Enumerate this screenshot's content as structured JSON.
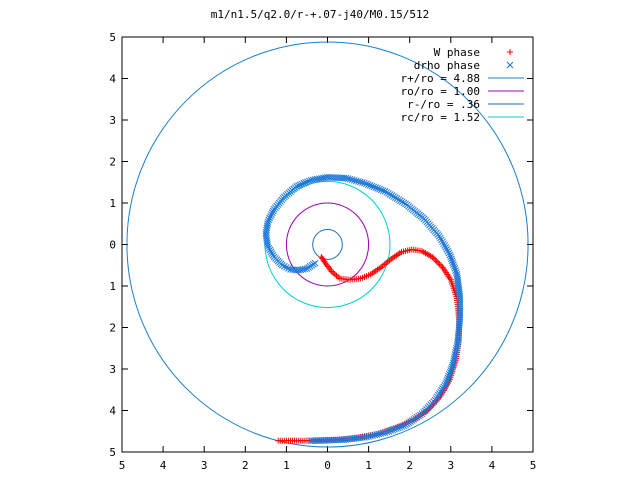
{
  "chart_data": {
    "type": "scatter",
    "title": "m1/n1.5/q2.0/r-+.07-j40/M0.15/512",
    "xlim": [
      -5,
      5
    ],
    "ylim": [
      -5,
      5
    ],
    "x_ticks": [
      -5,
      -4,
      -3,
      -2,
      -1,
      0,
      1,
      2,
      3,
      4,
      5
    ],
    "y_ticks": [
      -5,
      -4,
      -3,
      -2,
      -1,
      0,
      1,
      2,
      3,
      4,
      5
    ],
    "x_tick_labels": [
      "5",
      "4",
      "3",
      "2",
      "1",
      "0",
      "1",
      "2",
      "3",
      "4",
      "5"
    ],
    "y_tick_labels": [
      "5",
      "4",
      "3",
      "2",
      "1",
      "0",
      "1",
      "2",
      "3",
      "4",
      "5"
    ],
    "grid": false,
    "legend_position": "top-right",
    "series": [
      {
        "name": "W phase",
        "marker": "+",
        "color": "#ff0000",
        "points": [
          [
            -0.15,
            -0.3
          ],
          [
            -0.05,
            -0.45
          ],
          [
            0.1,
            -0.65
          ],
          [
            0.3,
            -0.82
          ],
          [
            0.55,
            -0.85
          ],
          [
            0.8,
            -0.82
          ],
          [
            1.05,
            -0.72
          ],
          [
            1.3,
            -0.55
          ],
          [
            1.55,
            -0.35
          ],
          [
            1.8,
            -0.18
          ],
          [
            2.05,
            -0.12
          ],
          [
            2.3,
            -0.16
          ],
          [
            2.55,
            -0.3
          ],
          [
            2.8,
            -0.55
          ],
          [
            3.0,
            -0.85
          ],
          [
            3.15,
            -1.3
          ],
          [
            3.2,
            -1.8
          ],
          [
            3.2,
            -2.3
          ],
          [
            3.12,
            -2.8
          ],
          [
            2.98,
            -3.25
          ],
          [
            2.75,
            -3.65
          ],
          [
            2.45,
            -3.98
          ],
          [
            2.1,
            -4.23
          ],
          [
            1.65,
            -4.42
          ],
          [
            1.2,
            -4.57
          ],
          [
            0.75,
            -4.65
          ],
          [
            0.3,
            -4.7
          ],
          [
            -0.2,
            -4.72
          ],
          [
            -0.65,
            -4.73
          ],
          [
            -1.05,
            -4.73
          ],
          [
            -1.2,
            -4.73
          ]
        ]
      },
      {
        "name": "drho phase",
        "marker": "x",
        "color": "#1f78d8",
        "points": [
          [
            -0.3,
            -0.45
          ],
          [
            -0.5,
            -0.58
          ],
          [
            -0.7,
            -0.62
          ],
          [
            -0.9,
            -0.6
          ],
          [
            -1.1,
            -0.5
          ],
          [
            -1.3,
            -0.3
          ],
          [
            -1.45,
            -0.05
          ],
          [
            -1.5,
            0.25
          ],
          [
            -1.45,
            0.55
          ],
          [
            -1.3,
            0.85
          ],
          [
            -1.05,
            1.15
          ],
          [
            -0.75,
            1.4
          ],
          [
            -0.4,
            1.55
          ],
          [
            0.0,
            1.62
          ],
          [
            0.45,
            1.6
          ],
          [
            0.9,
            1.48
          ],
          [
            1.4,
            1.28
          ],
          [
            1.9,
            0.98
          ],
          [
            2.35,
            0.62
          ],
          [
            2.72,
            0.2
          ],
          [
            2.98,
            -0.25
          ],
          [
            3.15,
            -0.72
          ],
          [
            3.22,
            -1.25
          ],
          [
            3.22,
            -1.8
          ],
          [
            3.17,
            -2.35
          ],
          [
            3.05,
            -2.9
          ],
          [
            2.88,
            -3.35
          ],
          [
            2.62,
            -3.75
          ],
          [
            2.3,
            -4.08
          ],
          [
            1.9,
            -4.35
          ],
          [
            1.45,
            -4.52
          ],
          [
            0.95,
            -4.64
          ],
          [
            0.45,
            -4.7
          ],
          [
            0.0,
            -4.72
          ],
          [
            -0.4,
            -4.73
          ]
        ]
      },
      {
        "name": "r+/ro = 4.88",
        "type": "circle",
        "radius": 4.88,
        "color": "#1a7fc8"
      },
      {
        "name": "ro/ro = 1.00",
        "type": "circle",
        "radius": 1.0,
        "color": "#9b00b8"
      },
      {
        "name": "r-/ro = .36",
        "type": "circle",
        "radius": 0.36,
        "color": "#1a6fb8"
      },
      {
        "name": "rc/ro = 1.52",
        "type": "circle",
        "radius": 1.52,
        "color": "#00d0d8"
      }
    ]
  }
}
